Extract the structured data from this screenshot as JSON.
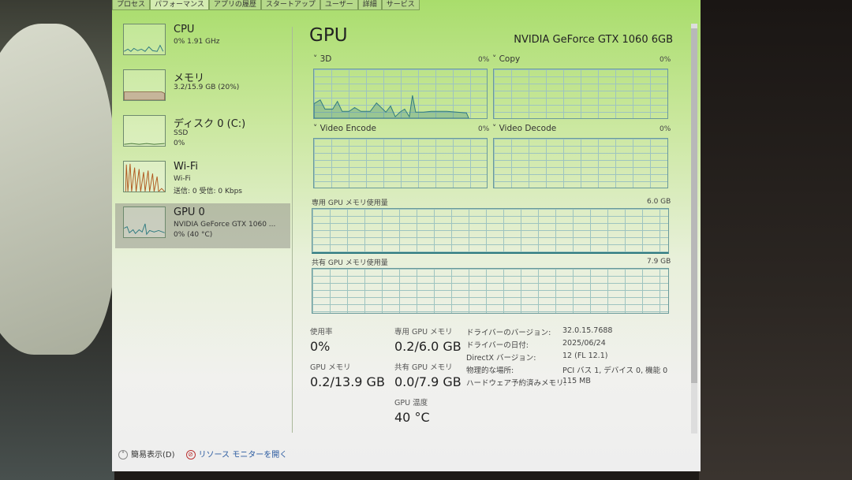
{
  "tabs": [
    "プロセス",
    "パフォーマンス",
    "アプリの履歴",
    "スタートアップ",
    "ユーザー",
    "詳細",
    "サービス"
  ],
  "active_tab": "パフォーマンス",
  "sidebar": [
    {
      "title": "CPU",
      "line1": "0% 1.91 GHz",
      "line2": ""
    },
    {
      "title": "メモリ",
      "line1": "3.2/15.9 GB (20%)",
      "line2": ""
    },
    {
      "title": "ディスク 0 (C:)",
      "line1": "SSD",
      "line2": "0%"
    },
    {
      "title": "Wi-Fi",
      "line1": "Wi-Fi",
      "line2": "送信: 0 受信: 0 Kbps"
    },
    {
      "title": "GPU 0",
      "line1": "NVIDIA GeForce GTX 1060 ...",
      "line2": "0% (40 °C)"
    }
  ],
  "main": {
    "title": "GPU",
    "model": "NVIDIA GeForce GTX 1060 6GB",
    "engines": [
      {
        "label": "3D",
        "pct": "0%"
      },
      {
        "label": "Copy",
        "pct": "0%"
      },
      {
        "label": "Video Encode",
        "pct": "0%"
      },
      {
        "label": "Video Decode",
        "pct": "0%"
      }
    ],
    "dedicated_label": "専用 GPU メモリ使用量",
    "dedicated_max": "6.0 GB",
    "shared_label": "共有 GPU メモリ使用量",
    "shared_max": "7.9 GB",
    "stats": {
      "usage_label": "使用率",
      "usage": "0%",
      "gpu_mem_label": "GPU メモリ",
      "gpu_mem": "0.2/13.9 GB",
      "ded_label": "専用 GPU メモリ",
      "ded": "0.2/6.0 GB",
      "shr_label": "共有 GPU メモリ",
      "shr": "0.0/7.9 GB",
      "temp_label": "GPU 温度",
      "temp": "40 °C"
    },
    "info": [
      {
        "k": "ドライバーのバージョン:",
        "v": "32.0.15.7688"
      },
      {
        "k": "ドライバーの日付:",
        "v": "2025/06/24"
      },
      {
        "k": "DirectX バージョン:",
        "v": "12 (FL 12.1)"
      },
      {
        "k": "物理的な場所:",
        "v": "PCI バス 1, デバイス 0, 機能 0"
      },
      {
        "k": "ハードウェア予約済みメモリ:",
        "v": "115 MB"
      }
    ]
  },
  "footer": {
    "fewer": "簡易表示(D)",
    "monitor": "リソース モニターを開く"
  },
  "colors": {
    "gpu_line": "#2e7a80",
    "wifi": "#b05a20",
    "mem": "#8b6a4a"
  }
}
